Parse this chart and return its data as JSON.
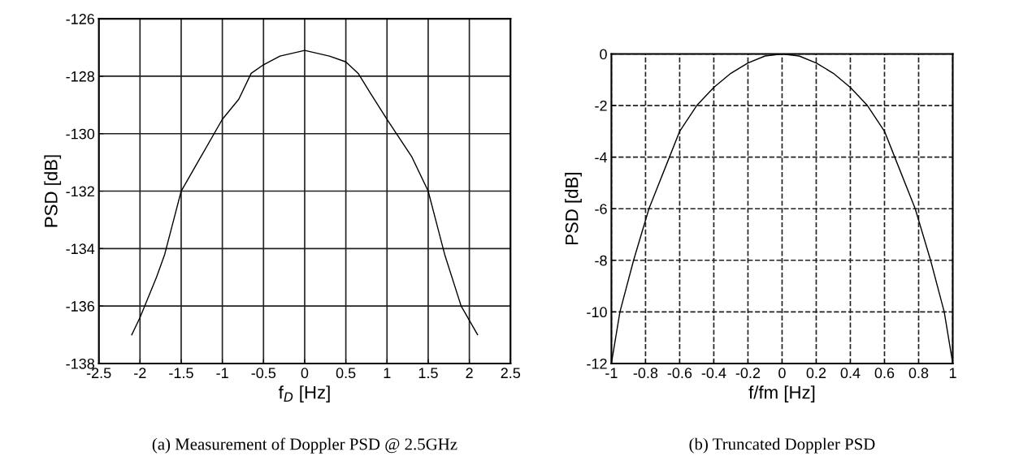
{
  "chart_data": [
    {
      "type": "line",
      "xlabel": "f$_{D}$ [Hz]",
      "ylabel": "PSD [dB]",
      "annotations": [
        "(a) Measurement of Doppler PSD @ 2.5GHz"
      ],
      "x": [
        -2.1,
        -2.0,
        -1.8,
        -1.7,
        -1.5,
        -1.3,
        -1.0,
        -0.8,
        -0.65,
        -0.5,
        -0.3,
        0,
        0.3,
        0.5,
        0.65,
        0.8,
        1.0,
        1.3,
        1.5,
        1.7,
        1.9,
        2.1
      ],
      "series": [
        {
          "color": "#000000",
          "values": [
            -137,
            -136.4,
            -135,
            -134.2,
            -132,
            -131,
            -129.5,
            -128.8,
            -127.9,
            -127.6,
            -127.3,
            -127.1,
            -127.3,
            -127.5,
            -127.9,
            -128.6,
            -129.5,
            -130.8,
            -132,
            -134.2,
            -136,
            -137
          ]
        }
      ],
      "xlim": [
        -2.5,
        2.5
      ],
      "xticks": [
        -2.5,
        -2,
        -1.5,
        -1,
        -0.5,
        0,
        0.5,
        1,
        1.5,
        2,
        2.5
      ],
      "ylim": [
        -138,
        -126
      ],
      "yticks": [
        -138,
        -136,
        -134,
        -132,
        -130,
        -128,
        -126
      ],
      "grid": true
    },
    {
      "type": "line",
      "xlabel": "f/fm [Hz]",
      "ylabel": "PSD [dB]",
      "annotations": [
        "(b) Truncated Doppler PSD"
      ],
      "x": [
        -1,
        -0.95,
        -0.87,
        -0.78,
        -0.66,
        -0.6,
        -0.5,
        -0.4,
        -0.3,
        -0.2,
        -0.1,
        0,
        0.1,
        0.2,
        0.3,
        0.4,
        0.5,
        0.6,
        0.66,
        0.78,
        0.87,
        0.95,
        1
      ],
      "series": [
        {
          "color": "#000000",
          "values": [
            -12,
            -10,
            -8,
            -6,
            -4,
            -3,
            -2,
            -1.3,
            -0.75,
            -0.35,
            -0.08,
            0,
            -0.08,
            -0.35,
            -0.75,
            -1.3,
            -2,
            -3,
            -4,
            -6,
            -8,
            -10,
            -12
          ]
        }
      ],
      "xlim": [
        -1,
        1
      ],
      "xticks": [
        -1,
        -0.8,
        -0.6,
        -0.4,
        -0.2,
        0,
        0.2,
        0.4,
        0.6,
        0.8,
        1
      ],
      "ylim": [
        -12,
        0
      ],
      "yticks": [
        -12,
        -10,
        -8,
        -6,
        -4,
        -2,
        0
      ],
      "grid": true
    }
  ]
}
